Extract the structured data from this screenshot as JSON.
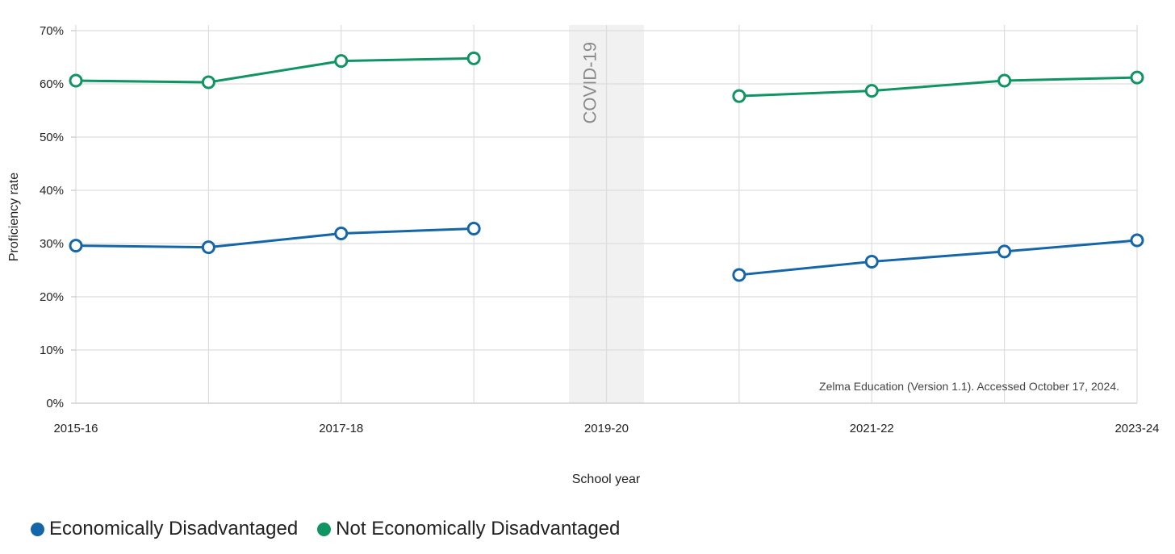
{
  "chart_data": {
    "type": "line",
    "xlabel": "School year",
    "ylabel": "Proficiency rate",
    "x": [
      "2015-16",
      "2016-17",
      "2017-18",
      "2018-19",
      "2019-20",
      "2020-21",
      "2021-22",
      "2022-23",
      "2023-24"
    ],
    "x_tick_labels": [
      "2015-16",
      "2017-18",
      "2019-20",
      "2021-22",
      "2023-24"
    ],
    "y_tick_labels": [
      "0%",
      "10%",
      "20%",
      "30%",
      "40%",
      "50%",
      "60%",
      "70%"
    ],
    "ylim": [
      0,
      70
    ],
    "grid": true,
    "legend_position": "bottom-left",
    "series": [
      {
        "name": "Economically Disadvantaged",
        "color": "#1566a8",
        "values": [
          29.6,
          29.3,
          31.9,
          32.8,
          null,
          24.1,
          26.6,
          28.5,
          30.6
        ]
      },
      {
        "name": "Not Economically Disadvantaged",
        "color": "#119463",
        "values": [
          60.6,
          60.3,
          64.3,
          64.8,
          null,
          57.7,
          58.7,
          60.6,
          61.2
        ]
      }
    ],
    "annotations": {
      "band_label": "COVID-19",
      "band_x": "2019-20",
      "source_note": "Zelma Education (Version 1.1). Accessed October 17, 2024."
    }
  }
}
